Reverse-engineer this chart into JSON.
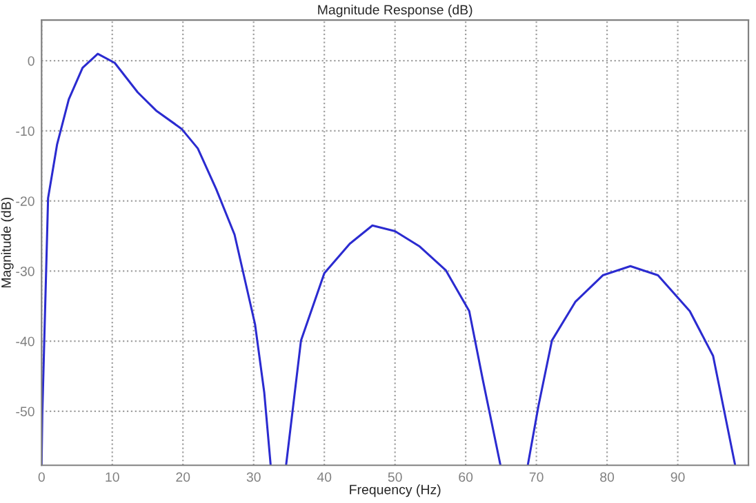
{
  "chart_data": {
    "type": "line",
    "title": "Magnitude Response (dB)",
    "xlabel": "Frequency (Hz)",
    "ylabel": "Magnitude (dB)",
    "x": [
      0,
      0.1,
      0.92,
      2.2,
      3.85,
      5.8,
      7.95,
      10.35,
      13.6,
      16.2,
      19.8,
      22.1,
      24.7,
      27.3,
      30.2,
      31.5,
      32.4,
      33.5,
      34.6,
      36.7,
      40,
      43.6,
      46.8,
      50,
      53.5,
      57.2,
      60.5,
      62.4,
      64.9,
      66.8,
      68.8,
      70.3,
      72.2,
      75.5,
      79.4,
      83.3,
      87.2,
      91.7,
      95,
      98.1
    ],
    "series": [
      {
        "color": "#2b2bd0",
        "values": [
          -57.6,
          -50.5,
          -19.6,
          -11.9,
          -5.5,
          -1.0,
          1.0,
          -0.3,
          -4.5,
          -7.1,
          -9.7,
          -12.5,
          -18.3,
          -24.8,
          -37.6,
          -47.3,
          -57.6,
          null,
          -57.6,
          -39.9,
          -30.3,
          -26.1,
          -23.5,
          -24.3,
          -26.5,
          -29.9,
          -35.7,
          -45.4,
          -57.6,
          null,
          -57.6,
          -49.2,
          -39.9,
          -34.4,
          -30.6,
          -29.3,
          -30.6,
          -35.7,
          -42.1,
          -57.6
        ]
      }
    ],
    "xlim": [
      0,
      100
    ],
    "xticks": [
      0,
      10,
      20,
      30,
      40,
      50,
      60,
      70,
      80,
      90
    ],
    "ylim": [
      -57.7,
      5.8
    ],
    "yticks": [
      -50,
      -40,
      -30,
      -20,
      -10,
      0
    ],
    "grid": true,
    "line_style": "solid",
    "marker": "none"
  }
}
